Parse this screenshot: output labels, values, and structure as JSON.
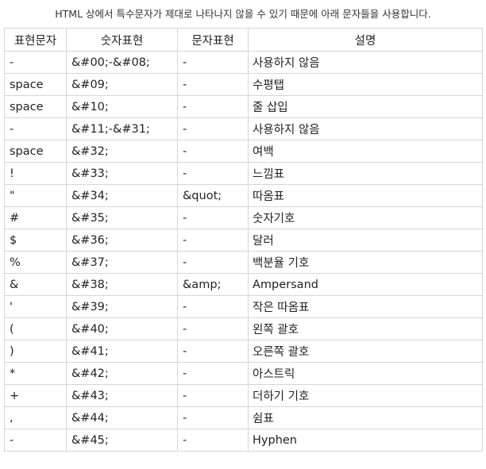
{
  "caption": "HTML 상에서 특수문자가 제대로 나타나지 않을 수 있기 때문에 아래 문자들을 사용합니다.",
  "table": {
    "headers": [
      "표현문자",
      "숫자표현",
      "문자표현",
      "설명"
    ],
    "rows": [
      [
        "-",
        "&#00;-&#08;",
        "-",
        "사용하지 않음"
      ],
      [
        "space",
        "&#09;",
        "-",
        "수평탭"
      ],
      [
        "space",
        "&#10;",
        "-",
        "줄 삽입"
      ],
      [
        "-",
        "&#11;-&#31;",
        "-",
        "사용하지 않음"
      ],
      [
        "space",
        "&#32;",
        "-",
        "여백"
      ],
      [
        "!",
        "&#33;",
        "-",
        "느낌표"
      ],
      [
        "\"",
        "&#34;",
        "&quot;",
        "따옴표"
      ],
      [
        "#",
        "&#35;",
        "-",
        "숫자기호"
      ],
      [
        "$",
        "&#36;",
        "-",
        "달러"
      ],
      [
        "%",
        "&#37;",
        "-",
        "백분율 기호"
      ],
      [
        "&",
        "&#38;",
        "&amp;",
        "Ampersand"
      ],
      [
        "'",
        "&#39;",
        "-",
        "작은 따옴표"
      ],
      [
        "(",
        "&#40;",
        "-",
        "왼쪽 괄호"
      ],
      [
        ")",
        "&#41;",
        "-",
        "오른쪽 괄호"
      ],
      [
        "*",
        "&#42;",
        "-",
        "아스트릭"
      ],
      [
        "+",
        "&#43;",
        "-",
        "더하기 기호"
      ],
      [
        ",",
        "&#44;",
        "-",
        "쉼표"
      ],
      [
        "-",
        "&#45;",
        "-",
        "Hyphen"
      ]
    ]
  }
}
